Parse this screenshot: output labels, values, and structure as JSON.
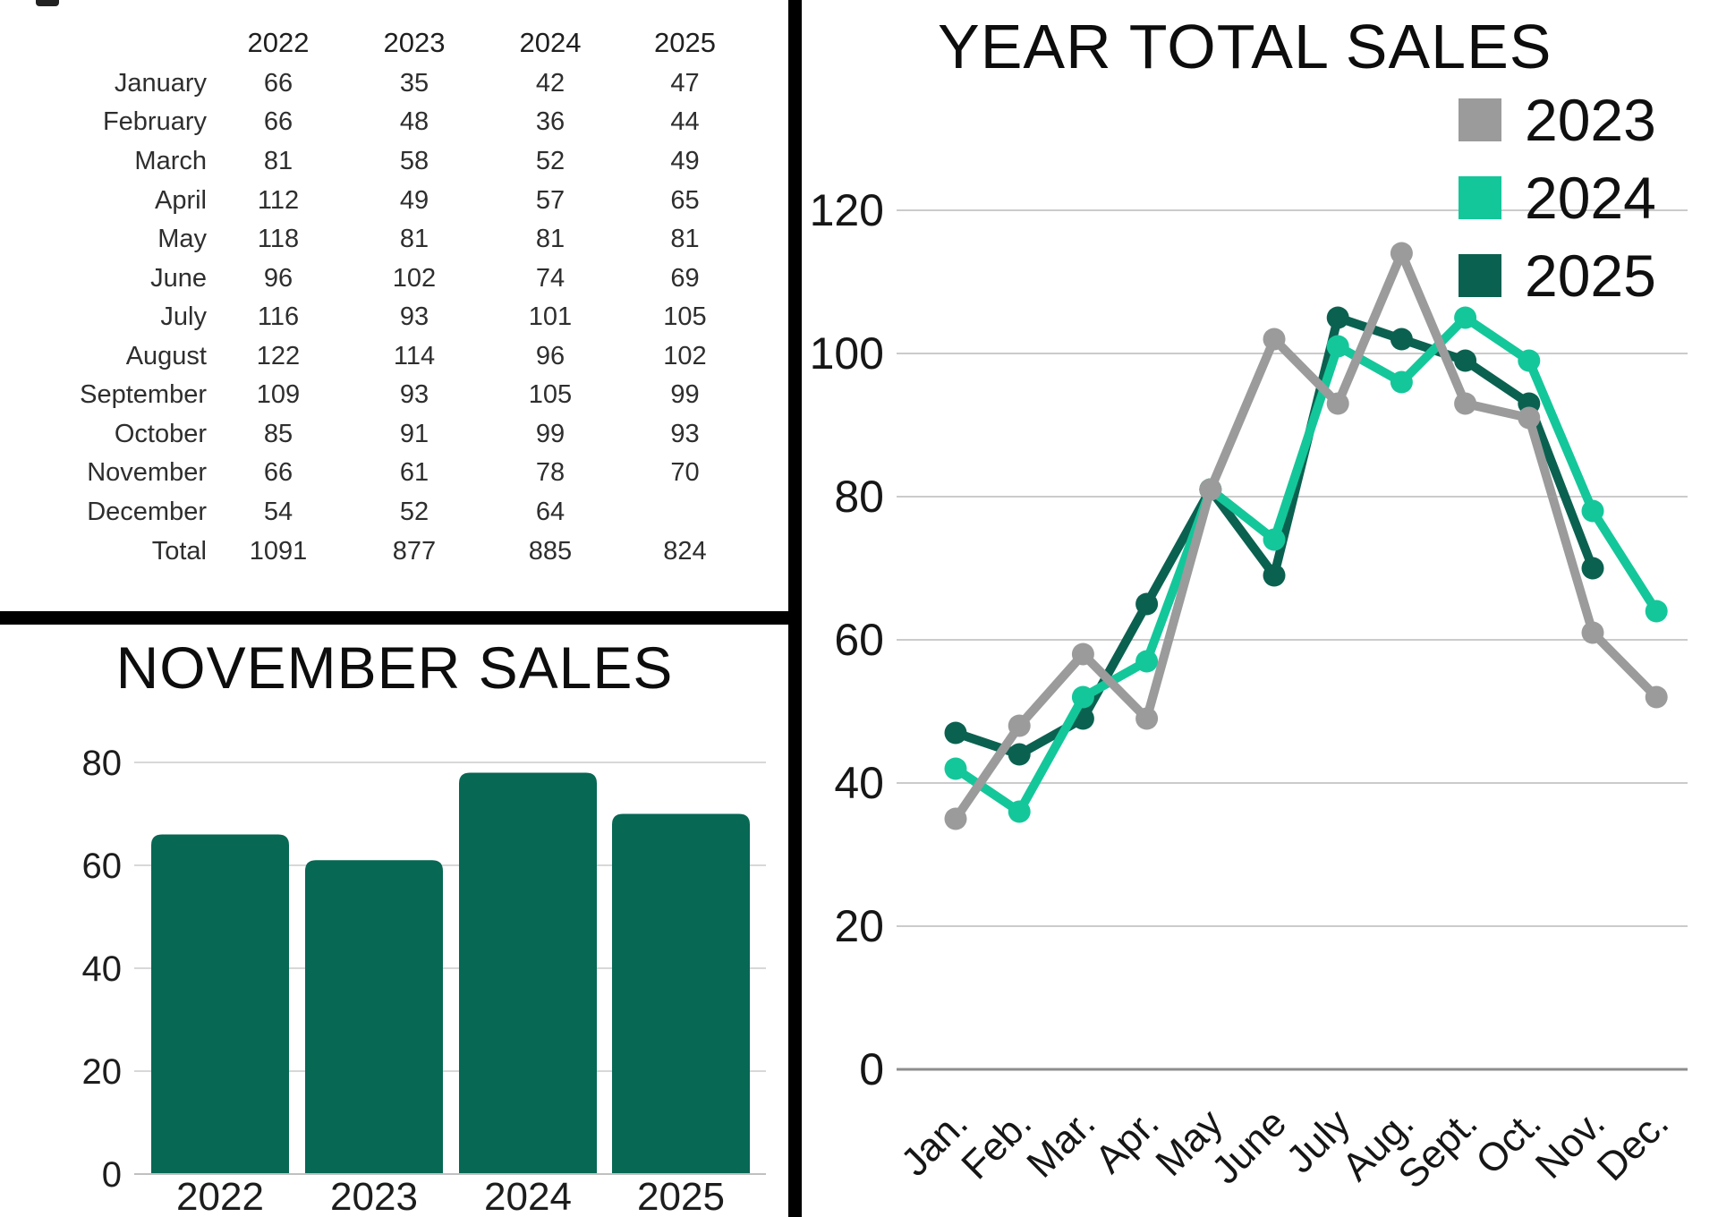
{
  "titles": {
    "november": "NOVEMBER SALES",
    "year_total": "YEAR TOTAL SALES"
  },
  "colors": {
    "bar": "#076854",
    "series_2023": "#9b9b9b",
    "series_2024": "#14c79a",
    "series_2025": "#0b6150",
    "grid_light": "#d8d8d8",
    "grid_line_chart": "#cbcbcb",
    "axis": "#8d8d8d",
    "text": "#161616"
  },
  "chart_data": [
    {
      "type": "table",
      "columns": [
        "2022",
        "2023",
        "2024",
        "2025"
      ],
      "rows": [
        [
          "January",
          66,
          35,
          42,
          47
        ],
        [
          "February",
          66,
          48,
          36,
          44
        ],
        [
          "March",
          81,
          58,
          52,
          49
        ],
        [
          "April",
          112,
          49,
          57,
          65
        ],
        [
          "May",
          118,
          81,
          81,
          81
        ],
        [
          "June",
          96,
          102,
          74,
          69
        ],
        [
          "July",
          116,
          93,
          101,
          105
        ],
        [
          "August",
          122,
          114,
          96,
          102
        ],
        [
          "September",
          109,
          93,
          105,
          99
        ],
        [
          "October",
          85,
          91,
          99,
          93
        ],
        [
          "November",
          66,
          61,
          78,
          70
        ],
        [
          "December",
          54,
          52,
          64,
          null
        ],
        [
          "Total",
          1091,
          877,
          885,
          824
        ]
      ]
    },
    {
      "type": "bar",
      "title": "NOVEMBER SALES",
      "categories": [
        "2022",
        "2023",
        "2024",
        "2025"
      ],
      "values": [
        66,
        61,
        78,
        70
      ],
      "xlabel": "",
      "ylabel": "",
      "ylim": [
        0,
        80
      ],
      "yticks": [
        0,
        20,
        40,
        60,
        80
      ],
      "grid": true,
      "legend_position": "none"
    },
    {
      "type": "line",
      "title": "YEAR TOTAL SALES",
      "x": [
        "Jan.",
        "Feb.",
        "Mar.",
        "Apr.",
        "May",
        "June",
        "July",
        "Aug.",
        "Sept.",
        "Oct.",
        "Nov.",
        "Dec."
      ],
      "series": [
        {
          "name": "2023",
          "color": "#9b9b9b",
          "values": [
            35,
            48,
            58,
            49,
            81,
            102,
            93,
            114,
            93,
            91,
            61,
            52
          ]
        },
        {
          "name": "2024",
          "color": "#14c79a",
          "values": [
            42,
            36,
            52,
            57,
            81,
            74,
            101,
            96,
            105,
            99,
            78,
            64
          ]
        },
        {
          "name": "2025",
          "color": "#0b6150",
          "values": [
            47,
            44,
            49,
            65,
            81,
            69,
            105,
            102,
            99,
            93,
            70,
            null
          ]
        }
      ],
      "xlabel": "",
      "ylabel": "",
      "ylim": [
        0,
        120
      ],
      "yticks": [
        0,
        20,
        40,
        60,
        80,
        100,
        120
      ],
      "grid": true,
      "legend_position": "top-right"
    }
  ]
}
